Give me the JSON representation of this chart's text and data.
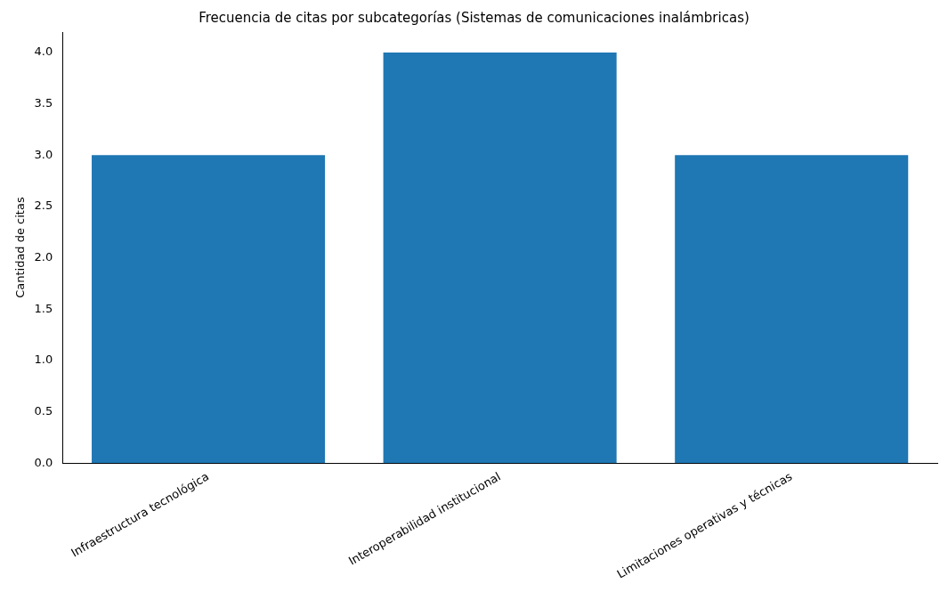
{
  "chart_data": {
    "type": "bar",
    "title": "Frecuencia de citas por subcategorías (Sistemas de comunicaciones inalámbricas)",
    "ylabel": "Cantidad de citas",
    "categories": [
      "Infraestructura tecnológica",
      "Interoperabilidad institucional",
      "Limitaciones operativas y técnicas"
    ],
    "values": [
      3,
      4,
      3
    ],
    "color": "#1f77b4",
    "ylim": [
      0,
      4.2
    ],
    "yticks": [
      {
        "value": 0,
        "label": "0.0"
      },
      {
        "value": 0.5,
        "label": "0.5"
      },
      {
        "value": 1,
        "label": "1.0"
      },
      {
        "value": 1.5,
        "label": "1.5"
      },
      {
        "value": 2,
        "label": "2.0"
      },
      {
        "value": 2.5,
        "label": "2.5"
      },
      {
        "value": 3,
        "label": "3.0"
      },
      {
        "value": 3.5,
        "label": "3.5"
      },
      {
        "value": 4,
        "label": "4.0"
      }
    ],
    "grid": false
  }
}
